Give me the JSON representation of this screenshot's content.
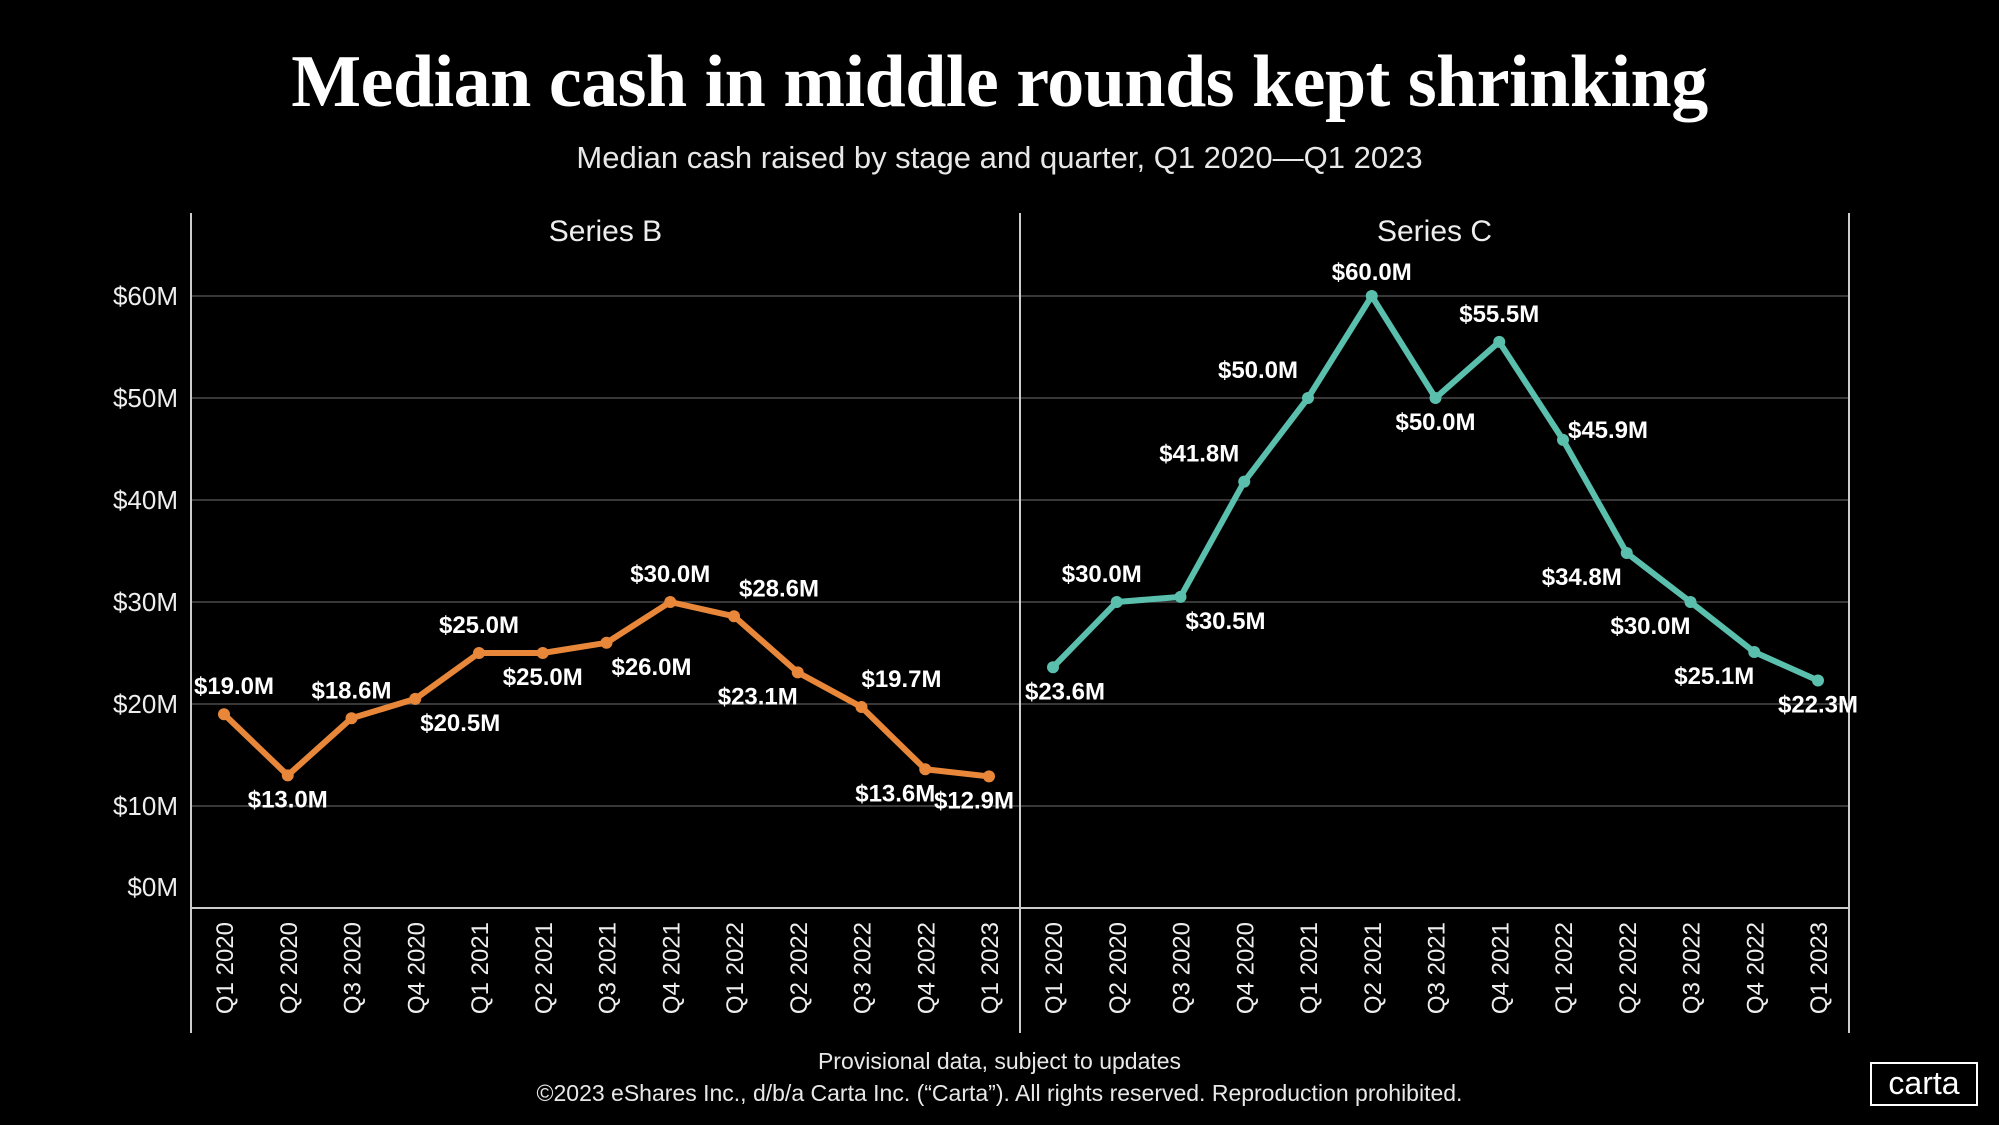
{
  "title": "Median cash in middle rounds kept shrinking",
  "subtitle": "Median cash raised by stage and quarter, Q1 2020—Q1 2023",
  "footer": {
    "note": "Provisional data, subject to updates",
    "copyright": "©2023 eShares Inc., d/b/a Carta Inc. (“Carta”). All rights reserved. Reproduction prohibited."
  },
  "logo": "carta",
  "chart_data": {
    "type": "line",
    "categories": [
      "Q1 2020",
      "Q2 2020",
      "Q3 2020",
      "Q4 2020",
      "Q1 2021",
      "Q2 2021",
      "Q3 2021",
      "Q4 2021",
      "Q1 2022",
      "Q2 2022",
      "Q3 2022",
      "Q4 2022",
      "Q1 2023"
    ],
    "yticks": [
      "$0M",
      "$10M",
      "$20M",
      "$30M",
      "$40M",
      "$50M",
      "$60M"
    ],
    "ylim": [
      0,
      60
    ],
    "grid": true,
    "panels": [
      {
        "name": "Series B",
        "color": "#E8873A",
        "values": [
          19.0,
          13.0,
          18.6,
          20.5,
          25.0,
          25.0,
          26.0,
          30.0,
          28.6,
          23.1,
          19.7,
          13.6,
          12.9
        ],
        "labels": [
          "$19.0M",
          "$13.0M",
          "$18.6M",
          "$20.5M",
          "$25.0M",
          "$25.0M",
          "$26.0M",
          "$30.0M",
          "$28.6M",
          "$23.1M",
          "$19.7M",
          "$13.6M",
          "$12.9M"
        ]
      },
      {
        "name": "Series C",
        "color": "#5BBFAD",
        "values": [
          23.6,
          30.0,
          30.5,
          41.8,
          50.0,
          60.0,
          50.0,
          55.5,
          45.9,
          34.8,
          30.0,
          25.1,
          22.3
        ],
        "labels": [
          "$23.6M",
          "$30.0M",
          "$30.5M",
          "$41.8M",
          "$50.0M",
          "$60.0M",
          "$50.0M",
          "$55.5M",
          "$45.9M",
          "$34.8M",
          "$30.0M",
          "$25.1M",
          "$22.3M"
        ]
      }
    ]
  }
}
